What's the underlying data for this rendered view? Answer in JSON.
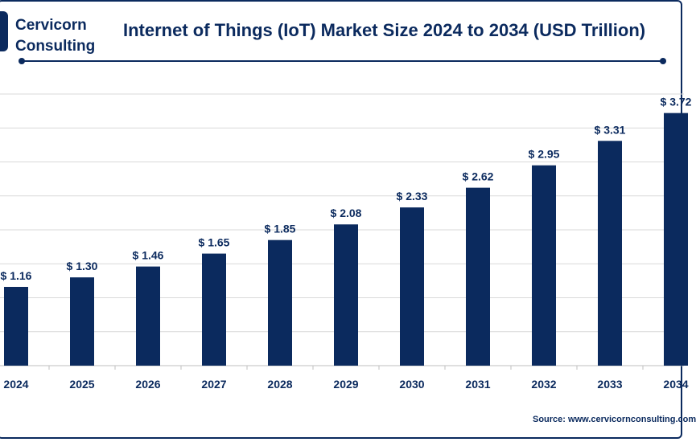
{
  "header": {
    "brand_name": "Cervicorn",
    "brand_sub": "Consulting",
    "title": "Internet of Things (IoT) Market Size 2024 to 2034 (USD Trillion)"
  },
  "chart_data": {
    "type": "bar",
    "title": "Internet of Things (IoT) Market Size 2024 to 2034 (USD Trillion)",
    "xlabel": "",
    "ylabel": "",
    "categories": [
      "2024",
      "2025",
      "2026",
      "2027",
      "2028",
      "2029",
      "2030",
      "2031",
      "2032",
      "2033",
      "2034"
    ],
    "values": [
      1.16,
      1.3,
      1.46,
      1.65,
      1.85,
      2.08,
      2.33,
      2.62,
      2.95,
      3.31,
      3.72
    ],
    "value_labels": [
      "$ 1.16",
      "$ 1.30",
      "$ 1.46",
      "$ 1.65",
      "$ 1.85",
      "$ 2.08",
      "$ 2.33",
      "$ 2.62",
      "$ 2.95",
      "$ 3.31",
      "$ 3.72"
    ],
    "ylim": [
      0,
      4.0
    ],
    "grid": true,
    "legend": "none"
  },
  "footer": {
    "source": "Source: www.cervicornconsulting.com"
  },
  "colors": {
    "bar": "#0b2a5e",
    "grid": "#d9d9d9",
    "text": "#0b2a5e"
  }
}
